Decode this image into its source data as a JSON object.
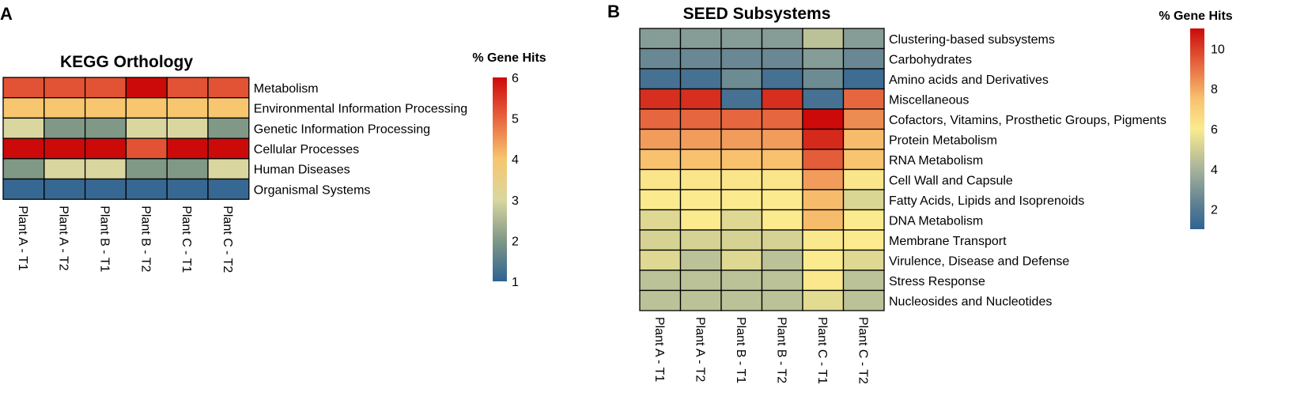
{
  "chart_data": [
    {
      "type": "heatmap",
      "panel": "A",
      "title": "KEGG Orthology",
      "rows": [
        "Metabolism",
        "Environmental Information Processing",
        "Genetic Information Processing",
        "Cellular Processes",
        "Human Diseases",
        "Organismal Systems"
      ],
      "columns": [
        "Plant A - T1",
        "Plant A - T2",
        "Plant B - T1",
        "Plant B - T2",
        "Plant C - T1",
        "Plant C - T2"
      ],
      "values": [
        [
          5.2,
          5.2,
          5.2,
          6.0,
          5.2,
          5.2
        ],
        [
          4.0,
          4.0,
          4.0,
          4.0,
          4.0,
          4.0
        ],
        [
          3.0,
          2.0,
          2.0,
          3.0,
          3.0,
          2.0
        ],
        [
          6.0,
          6.0,
          6.0,
          5.2,
          6.0,
          6.0
        ],
        [
          2.0,
          3.0,
          3.0,
          2.0,
          2.0,
          3.0
        ],
        [
          1.1,
          1.1,
          1.1,
          1.1,
          1.1,
          1.1
        ]
      ],
      "color_range": [
        1,
        6
      ],
      "legend": {
        "title": "% Gene Hits",
        "ticks": [
          1,
          2,
          3,
          4,
          5,
          6
        ]
      }
    },
    {
      "type": "heatmap",
      "panel": "B",
      "title": "SEED Subsystems",
      "rows": [
        "Clustering-based subsystems",
        "Carbohydrates",
        "Amino acids and Derivatives",
        "Miscellaneous",
        "Cofactors, Vitamins, Prosthetic Groups, Pigments",
        "Protein Metabolism",
        "RNA Metabolism",
        "Cell Wall and Capsule",
        "Fatty Acids, Lipids and Isoprenoids",
        "DNA Metabolism",
        "Membrane Transport",
        "Virulence, Disease and Defense",
        "Stress Response",
        "Nucleosides and Nucleotides"
      ],
      "columns": [
        "Plant A - T1",
        "Plant A - T2",
        "Plant B - T1",
        "Plant B - T2",
        "Plant C - T1",
        "Plant C - T2"
      ],
      "values": [
        [
          3.2,
          3.2,
          3.2,
          3.2,
          4.5,
          3.2
        ],
        [
          2.5,
          2.5,
          2.5,
          2.5,
          3.2,
          2.5
        ],
        [
          1.6,
          1.6,
          2.6,
          1.6,
          2.6,
          1.4
        ],
        [
          10.3,
          10.3,
          1.6,
          10.3,
          1.6,
          9.2
        ],
        [
          9.2,
          9.2,
          9.2,
          9.2,
          11.0,
          8.5
        ],
        [
          8.2,
          8.2,
          8.2,
          8.2,
          10.4,
          7.6
        ],
        [
          7.5,
          7.5,
          7.5,
          7.5,
          9.4,
          7.4
        ],
        [
          6.2,
          6.2,
          6.2,
          6.2,
          8.2,
          6.2
        ],
        [
          6.0,
          6.0,
          6.0,
          6.0,
          7.6,
          5.2
        ],
        [
          5.3,
          6.0,
          5.3,
          6.0,
          7.6,
          6.0
        ],
        [
          5.1,
          5.1,
          5.1,
          5.1,
          6.1,
          6.0
        ],
        [
          5.3,
          4.5,
          5.3,
          4.5,
          6.0,
          5.3
        ],
        [
          4.5,
          4.5,
          4.5,
          4.5,
          6.1,
          4.5
        ],
        [
          4.5,
          4.5,
          4.5,
          4.5,
          5.4,
          4.5
        ]
      ],
      "color_range": [
        1,
        11
      ],
      "legend": {
        "title": "% Gene Hits",
        "ticks": [
          2,
          4,
          6,
          8,
          10
        ]
      }
    }
  ]
}
